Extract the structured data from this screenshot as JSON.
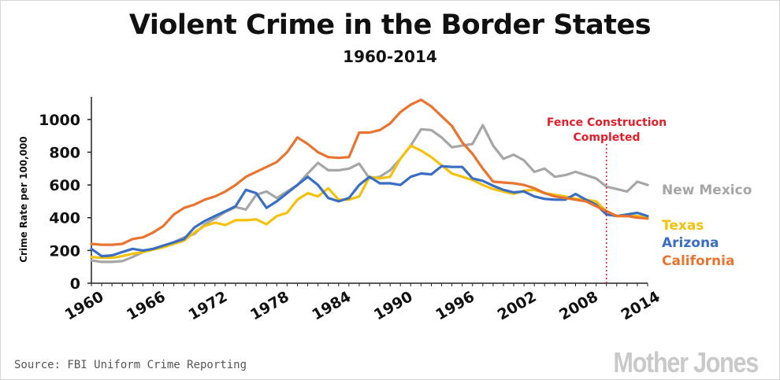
{
  "title": "Violent Crime in the Border States",
  "subtitle": "1960-2014",
  "source": "Source: FBI Uniform Crime Reporting",
  "logo": "Mother Jones",
  "chart_data": {
    "type": "line",
    "title": "Violent Crime in the Border States",
    "subtitle": "1960-2014",
    "ylabel": "Crime Rate per 100,000",
    "xlabel": "",
    "xlim": [
      1960,
      2014
    ],
    "ylim": [
      0,
      1100
    ],
    "x_ticks": [
      "1960",
      "1966",
      "1972",
      "1978",
      "1984",
      "1990",
      "1996",
      "2002",
      "2008",
      "2014"
    ],
    "y_ticks": [
      "0",
      "200",
      "400",
      "600",
      "800",
      "1000"
    ],
    "grid": false,
    "legend": "direct labels at right end of lines",
    "x": [
      1960,
      1961,
      1962,
      1963,
      1964,
      1965,
      1966,
      1967,
      1968,
      1969,
      1970,
      1971,
      1972,
      1973,
      1974,
      1975,
      1976,
      1977,
      1978,
      1979,
      1980,
      1981,
      1982,
      1983,
      1984,
      1985,
      1986,
      1987,
      1988,
      1989,
      1990,
      1991,
      1992,
      1993,
      1994,
      1995,
      1996,
      1997,
      1998,
      1999,
      2000,
      2001,
      2002,
      2003,
      2004,
      2005,
      2006,
      2007,
      2008,
      2009,
      2010,
      2011,
      2012,
      2013,
      2014
    ],
    "series": [
      {
        "name": "New Mexico",
        "color": "#a6a6a6",
        "values": [
          140,
          130,
          130,
          135,
          160,
          190,
          210,
          230,
          250,
          280,
          300,
          360,
          395,
          435,
          465,
          450,
          540,
          560,
          520,
          560,
          600,
          670,
          735,
          690,
          690,
          700,
          730,
          640,
          650,
          690,
          760,
          840,
          940,
          935,
          890,
          830,
          840,
          850,
          965,
          840,
          760,
          785,
          750,
          680,
          700,
          650,
          660,
          680,
          660,
          640,
          590,
          575,
          560,
          620,
          600
        ]
      },
      {
        "name": "Texas",
        "color": "#f4c20d",
        "values": [
          160,
          155,
          155,
          165,
          180,
          190,
          205,
          220,
          240,
          260,
          310,
          350,
          370,
          355,
          385,
          385,
          390,
          360,
          410,
          430,
          510,
          550,
          530,
          580,
          510,
          510,
          530,
          650,
          640,
          650,
          760,
          840,
          810,
          770,
          720,
          670,
          650,
          630,
          600,
          575,
          560,
          545,
          565,
          570,
          550,
          540,
          530,
          515,
          510,
          500,
          440,
          410,
          410,
          410,
          405
        ]
      },
      {
        "name": "Arizona",
        "color": "#3a6ec2",
        "values": [
          210,
          165,
          170,
          190,
          210,
          200,
          210,
          230,
          250,
          270,
          340,
          380,
          410,
          440,
          470,
          570,
          550,
          460,
          500,
          550,
          600,
          650,
          600,
          520,
          500,
          520,
          600,
          650,
          610,
          610,
          600,
          650,
          670,
          665,
          715,
          710,
          710,
          640,
          625,
          595,
          570,
          555,
          560,
          530,
          515,
          510,
          510,
          545,
          510,
          480,
          420,
          410,
          420,
          430,
          410
        ]
      },
      {
        "name": "California",
        "color": "#e8742f",
        "values": [
          240,
          235,
          235,
          240,
          270,
          280,
          310,
          350,
          420,
          460,
          480,
          510,
          530,
          560,
          600,
          650,
          680,
          710,
          740,
          800,
          890,
          850,
          800,
          770,
          765,
          770,
          920,
          920,
          935,
          975,
          1045,
          1090,
          1120,
          1080,
          1020,
          960,
          860,
          790,
          700,
          620,
          615,
          610,
          600,
          580,
          550,
          530,
          520,
          510,
          500,
          470,
          440,
          410,
          410,
          400,
          395
        ]
      }
    ],
    "annotations": [
      {
        "text": "Fence Construction Completed",
        "x": 2010,
        "color": "#e0202a",
        "style": "dotted vertical line"
      }
    ]
  },
  "annotation_lines": [
    "Fence Construction",
    "Completed"
  ]
}
